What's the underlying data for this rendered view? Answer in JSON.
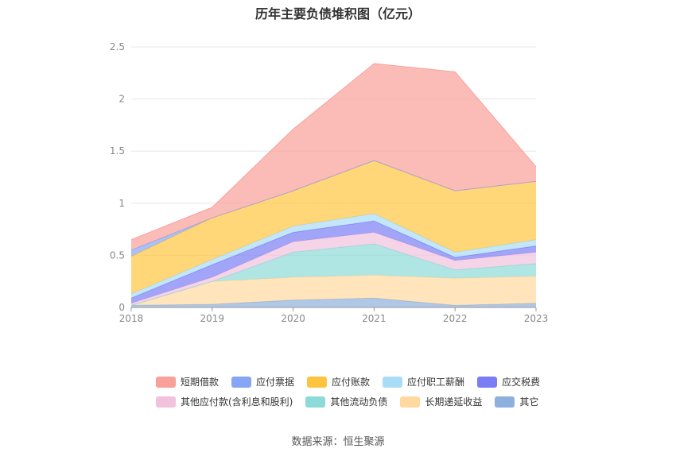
{
  "title": "历年主要负债堆积图（亿元）",
  "source": "数据来源：恒生聚源",
  "chart_data": {
    "type": "area",
    "stacked": true,
    "title": "历年主要负债堆积图（亿元）",
    "xlabel": "",
    "ylabel": "",
    "categories": [
      "2018",
      "2019",
      "2020",
      "2021",
      "2022",
      "2023"
    ],
    "ylim": [
      0,
      2.5
    ],
    "yticks": [
      0,
      0.5,
      1,
      1.5,
      2,
      2.5
    ],
    "ytick_labels": [
      "0",
      "0.5",
      "1",
      "1.5",
      "2",
      "2.5"
    ],
    "grid": true,
    "legend_position": "bottom",
    "series": [
      {
        "name": "其它",
        "color": "#8eb0de",
        "values": [
          0.02,
          0.03,
          0.07,
          0.09,
          0.02,
          0.04
        ]
      },
      {
        "name": "长期递延收益",
        "color": "#ffd9a0",
        "values": [
          0.0,
          0.22,
          0.22,
          0.22,
          0.26,
          0.26
        ]
      },
      {
        "name": "其他流动负债",
        "color": "#8ddbd9",
        "values": [
          0.0,
          0.0,
          0.24,
          0.3,
          0.08,
          0.12
        ]
      },
      {
        "name": "其他应付款(含利息和股利)",
        "color": "#f0c2dc",
        "values": [
          0.02,
          0.04,
          0.1,
          0.11,
          0.09,
          0.11
        ]
      },
      {
        "name": "应交税费",
        "color": "#7a7df5",
        "values": [
          0.05,
          0.12,
          0.09,
          0.11,
          0.03,
          0.06
        ]
      },
      {
        "name": "应付职工薪酬",
        "color": "#a9dcf7",
        "values": [
          0.04,
          0.05,
          0.06,
          0.07,
          0.05,
          0.06
        ]
      },
      {
        "name": "应付账款",
        "color": "#ffc43f",
        "values": [
          0.36,
          0.4,
          0.34,
          0.51,
          0.59,
          0.56
        ]
      },
      {
        "name": "应付票据",
        "color": "#86a6f5",
        "values": [
          0.06,
          0.0,
          0.0,
          0.0,
          0.0,
          0.0
        ]
      },
      {
        "name": "短期借款",
        "color": "#f9a09a",
        "values": [
          0.1,
          0.1,
          0.59,
          0.93,
          1.14,
          0.14
        ]
      }
    ]
  },
  "legend": {
    "row1": [
      {
        "label": "短期借款",
        "color": "#f9a09a"
      },
      {
        "label": "应付票据",
        "color": "#86a6f5"
      },
      {
        "label": "应付账款",
        "color": "#ffc43f"
      },
      {
        "label": "应付职工薪酬",
        "color": "#a9dcf7"
      },
      {
        "label": "应交税费",
        "color": "#7a7df5"
      }
    ],
    "row2": [
      {
        "label": "其他应付款(含利息和股利)",
        "color": "#f0c2dc"
      },
      {
        "label": "其他流动负债",
        "color": "#8ddbd9"
      },
      {
        "label": "长期递延收益",
        "color": "#ffd9a0"
      },
      {
        "label": "其它",
        "color": "#8eb0de"
      }
    ]
  }
}
